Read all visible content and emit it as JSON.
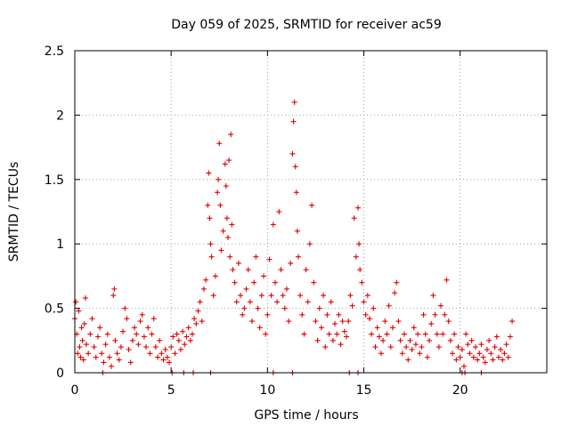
{
  "chart_data": {
    "type": "scatter",
    "title": "Day 059 of 2025, SRMTID for receiver ac59",
    "xlabel": "GPS time / hours",
    "ylabel": "SRMTID / TECUs",
    "xlim": [
      0,
      24.5
    ],
    "ylim": [
      0,
      2.5
    ],
    "xticks": [
      0,
      5,
      10,
      15,
      20
    ],
    "xtick_labels": [
      "0",
      "5",
      "10",
      "15",
      "20"
    ],
    "yticks": [
      0,
      0.5,
      1,
      1.5,
      2,
      2.5
    ],
    "ytick_labels": [
      "0",
      "0.5",
      "1",
      "1.5",
      "2",
      "2.5"
    ],
    "grid": true,
    "marker": "plus",
    "color": "#e00000",
    "series": [
      {
        "name": "SRMTID",
        "points": [
          [
            0.0,
            0.42
          ],
          [
            0.05,
            0.55
          ],
          [
            0.1,
            0.3
          ],
          [
            0.15,
            0.15
          ],
          [
            0.2,
            0.48
          ],
          [
            0.25,
            0.2
          ],
          [
            0.3,
            0.12
          ],
          [
            0.35,
            0.35
          ],
          [
            0.4,
            0.25
          ],
          [
            0.45,
            0.1
          ],
          [
            0.5,
            0.38
          ],
          [
            0.55,
            0.58
          ],
          [
            0.6,
            0.22
          ],
          [
            0.7,
            0.15
          ],
          [
            0.8,
            0.3
          ],
          [
            0.9,
            0.42
          ],
          [
            1.0,
            0.2
          ],
          [
            1.1,
            0.12
          ],
          [
            1.2,
            0.28
          ],
          [
            1.3,
            0.35
          ],
          [
            1.4,
            0.15
          ],
          [
            1.5,
            0.08
          ],
          [
            1.6,
            0.22
          ],
          [
            1.7,
            0.3
          ],
          [
            1.8,
            0.12
          ],
          [
            1.9,
            0.05
          ],
          [
            2.0,
            0.6
          ],
          [
            2.05,
            0.65
          ],
          [
            2.1,
            0.25
          ],
          [
            2.2,
            0.15
          ],
          [
            2.3,
            0.1
          ],
          [
            2.4,
            0.2
          ],
          [
            2.5,
            0.32
          ],
          [
            2.6,
            0.5
          ],
          [
            2.7,
            0.42
          ],
          [
            2.8,
            0.18
          ],
          [
            2.9,
            0.08
          ],
          [
            3.0,
            0.25
          ],
          [
            3.1,
            0.35
          ],
          [
            3.2,
            0.3
          ],
          [
            3.3,
            0.22
          ],
          [
            3.4,
            0.4
          ],
          [
            3.5,
            0.45
          ],
          [
            3.6,
            0.28
          ],
          [
            3.7,
            0.2
          ],
          [
            3.8,
            0.35
          ],
          [
            3.9,
            0.15
          ],
          [
            4.0,
            0.3
          ],
          [
            4.1,
            0.42
          ],
          [
            4.2,
            0.2
          ],
          [
            4.3,
            0.12
          ],
          [
            4.4,
            0.25
          ],
          [
            4.5,
            0.15
          ],
          [
            4.6,
            0.1
          ],
          [
            4.7,
            0.18
          ],
          [
            4.8,
            0.12
          ],
          [
            4.9,
            0.08
          ],
          [
            5.0,
            0.2
          ],
          [
            5.1,
            0.28
          ],
          [
            5.2,
            0.15
          ],
          [
            5.3,
            0.3
          ],
          [
            5.4,
            0.25
          ],
          [
            5.5,
            0.18
          ],
          [
            5.6,
            0.32
          ],
          [
            5.7,
            0.22
          ],
          [
            5.8,
            0.28
          ],
          [
            5.9,
            0.35
          ],
          [
            6.0,
            0.25
          ],
          [
            6.1,
            0.3
          ],
          [
            6.2,
            0.42
          ],
          [
            6.3,
            0.38
          ],
          [
            6.4,
            0.48
          ],
          [
            6.5,
            0.55
          ],
          [
            6.6,
            0.4
          ],
          [
            6.7,
            0.65
          ],
          [
            6.8,
            0.72
          ],
          [
            6.9,
            1.3
          ],
          [
            6.95,
            1.55
          ],
          [
            7.0,
            1.2
          ],
          [
            7.05,
            1.0
          ],
          [
            7.1,
            0.9
          ],
          [
            7.2,
            0.6
          ],
          [
            7.3,
            0.75
          ],
          [
            7.4,
            1.4
          ],
          [
            7.45,
            1.5
          ],
          [
            7.5,
            1.78
          ],
          [
            7.55,
            1.3
          ],
          [
            7.6,
            0.95
          ],
          [
            7.7,
            1.1
          ],
          [
            7.8,
            1.62
          ],
          [
            7.85,
            1.45
          ],
          [
            7.9,
            1.2
          ],
          [
            7.95,
            1.05
          ],
          [
            8.0,
            1.65
          ],
          [
            8.05,
            0.9
          ],
          [
            8.1,
            1.85
          ],
          [
            8.15,
            1.15
          ],
          [
            8.2,
            0.8
          ],
          [
            8.3,
            0.7
          ],
          [
            8.4,
            0.55
          ],
          [
            8.5,
            0.85
          ],
          [
            8.6,
            0.6
          ],
          [
            8.7,
            0.45
          ],
          [
            8.8,
            0.5
          ],
          [
            8.9,
            0.65
          ],
          [
            9.0,
            0.8
          ],
          [
            9.1,
            0.55
          ],
          [
            9.2,
            0.4
          ],
          [
            9.3,
            0.7
          ],
          [
            9.4,
            0.9
          ],
          [
            9.5,
            0.5
          ],
          [
            9.6,
            0.35
          ],
          [
            9.7,
            0.6
          ],
          [
            9.8,
            0.75
          ],
          [
            9.9,
            0.3
          ],
          [
            10.0,
            0.45
          ],
          [
            10.1,
            0.88
          ],
          [
            10.2,
            0.6
          ],
          [
            10.3,
            1.15
          ],
          [
            10.4,
            0.7
          ],
          [
            10.5,
            0.55
          ],
          [
            10.6,
            1.25
          ],
          [
            10.7,
            0.8
          ],
          [
            10.8,
            0.6
          ],
          [
            10.9,
            0.5
          ],
          [
            11.0,
            0.65
          ],
          [
            11.1,
            0.4
          ],
          [
            11.2,
            0.85
          ],
          [
            11.3,
            1.7
          ],
          [
            11.35,
            1.95
          ],
          [
            11.4,
            2.1
          ],
          [
            11.45,
            1.6
          ],
          [
            11.5,
            1.4
          ],
          [
            11.55,
            1.1
          ],
          [
            11.6,
            0.9
          ],
          [
            11.7,
            0.6
          ],
          [
            11.8,
            0.45
          ],
          [
            11.9,
            0.3
          ],
          [
            12.0,
            0.8
          ],
          [
            12.1,
            0.55
          ],
          [
            12.2,
            1.0
          ],
          [
            12.3,
            1.3
          ],
          [
            12.4,
            0.7
          ],
          [
            12.5,
            0.4
          ],
          [
            12.6,
            0.25
          ],
          [
            12.7,
            0.5
          ],
          [
            12.8,
            0.35
          ],
          [
            12.9,
            0.6
          ],
          [
            13.0,
            0.2
          ],
          [
            13.1,
            0.45
          ],
          [
            13.2,
            0.3
          ],
          [
            13.3,
            0.55
          ],
          [
            13.4,
            0.25
          ],
          [
            13.5,
            0.38
          ],
          [
            13.6,
            0.3
          ],
          [
            13.7,
            0.45
          ],
          [
            13.8,
            0.22
          ],
          [
            13.9,
            0.4
          ],
          [
            14.0,
            0.32
          ],
          [
            14.1,
            0.28
          ],
          [
            14.2,
            0.4
          ],
          [
            14.3,
            0.6
          ],
          [
            14.4,
            0.52
          ],
          [
            14.5,
            1.2
          ],
          [
            14.6,
            0.9
          ],
          [
            14.7,
            1.28
          ],
          [
            14.75,
            1.0
          ],
          [
            14.8,
            0.8
          ],
          [
            14.9,
            0.7
          ],
          [
            15.0,
            0.55
          ],
          [
            15.1,
            0.45
          ],
          [
            15.2,
            0.6
          ],
          [
            15.3,
            0.42
          ],
          [
            15.4,
            0.3
          ],
          [
            15.5,
            0.5
          ],
          [
            15.6,
            0.2
          ],
          [
            15.7,
            0.35
          ],
          [
            15.8,
            0.28
          ],
          [
            15.9,
            0.15
          ],
          [
            16.0,
            0.25
          ],
          [
            16.1,
            0.4
          ],
          [
            16.2,
            0.3
          ],
          [
            16.3,
            0.52
          ],
          [
            16.4,
            0.2
          ],
          [
            16.5,
            0.35
          ],
          [
            16.6,
            0.62
          ],
          [
            16.7,
            0.7
          ],
          [
            16.8,
            0.4
          ],
          [
            16.9,
            0.25
          ],
          [
            17.0,
            0.15
          ],
          [
            17.1,
            0.3
          ],
          [
            17.2,
            0.2
          ],
          [
            17.3,
            0.1
          ],
          [
            17.4,
            0.25
          ],
          [
            17.5,
            0.18
          ],
          [
            17.6,
            0.35
          ],
          [
            17.7,
            0.22
          ],
          [
            17.8,
            0.3
          ],
          [
            17.9,
            0.15
          ],
          [
            18.0,
            0.2
          ],
          [
            18.1,
            0.45
          ],
          [
            18.2,
            0.3
          ],
          [
            18.3,
            0.12
          ],
          [
            18.4,
            0.25
          ],
          [
            18.5,
            0.38
          ],
          [
            18.6,
            0.6
          ],
          [
            18.7,
            0.45
          ],
          [
            18.8,
            0.3
          ],
          [
            18.9,
            0.2
          ],
          [
            19.0,
            0.52
          ],
          [
            19.1,
            0.3
          ],
          [
            19.2,
            0.45
          ],
          [
            19.3,
            0.72
          ],
          [
            19.4,
            0.4
          ],
          [
            19.5,
            0.25
          ],
          [
            19.6,
            0.15
          ],
          [
            19.7,
            0.3
          ],
          [
            19.8,
            0.1
          ],
          [
            19.9,
            0.2
          ],
          [
            20.0,
            0.12
          ],
          [
            20.1,
            0.18
          ],
          [
            20.2,
            0.05
          ],
          [
            20.3,
            0.3
          ],
          [
            20.4,
            0.22
          ],
          [
            20.5,
            0.15
          ],
          [
            20.6,
            0.25
          ],
          [
            20.7,
            0.12
          ],
          [
            20.8,
            0.2
          ],
          [
            20.9,
            0.1
          ],
          [
            21.0,
            0.15
          ],
          [
            21.1,
            0.22
          ],
          [
            21.2,
            0.12
          ],
          [
            21.3,
            0.08
          ],
          [
            21.4,
            0.18
          ],
          [
            21.5,
            0.25
          ],
          [
            21.6,
            0.15
          ],
          [
            21.7,
            0.1
          ],
          [
            21.8,
            0.2
          ],
          [
            21.9,
            0.28
          ],
          [
            22.0,
            0.12
          ],
          [
            22.1,
            0.18
          ],
          [
            22.2,
            0.1
          ],
          [
            22.3,
            0.15
          ],
          [
            22.4,
            0.22
          ],
          [
            22.5,
            0.12
          ],
          [
            22.6,
            0.28
          ],
          [
            22.7,
            0.4
          ],
          [
            1.45,
            0.0
          ],
          [
            5.05,
            0.0
          ],
          [
            5.65,
            0.0
          ],
          [
            6.15,
            0.0
          ],
          [
            7.05,
            0.0
          ],
          [
            10.3,
            0.0
          ],
          [
            11.3,
            0.0
          ],
          [
            14.25,
            0.0
          ],
          [
            14.7,
            0.0
          ],
          [
            20.1,
            0.0
          ],
          [
            20.25,
            0.0
          ],
          [
            21.1,
            0.0
          ]
        ]
      }
    ]
  }
}
